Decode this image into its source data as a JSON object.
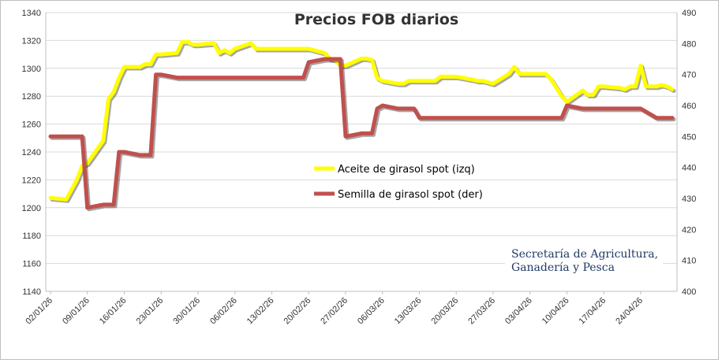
{
  "chart_data": {
    "type": "line",
    "title": "Precios FOB diarios",
    "watermark": [
      "Secretaría de Agricultura,",
      "Ganadería y Pesca"
    ],
    "x_tick_labels": [
      "02/01/26",
      "09/01/26",
      "16/01/26",
      "23/01/26",
      "30/01/26",
      "06/02/26",
      "13/02/26",
      "20/02/26",
      "27/02/26",
      "06/03/26",
      "13/03/26",
      "20/03/26",
      "27/03/26",
      "03/04/26",
      "10/04/26",
      "17/04/26",
      "24/04/26"
    ],
    "y_left": {
      "min": 1140,
      "max": 1340,
      "step": 20
    },
    "y_right": {
      "min": 400,
      "max": 490,
      "step": 10
    },
    "grid": true,
    "legend_position": "center",
    "series": [
      {
        "name": "Aceite de girasol spot (izq)",
        "axis": "left",
        "color": "#ffff00",
        "points": [
          [
            "2026-01-02",
            1207
          ],
          [
            "2026-01-05",
            1206
          ],
          [
            "2026-01-07",
            1220
          ],
          [
            "2026-01-08",
            1230
          ],
          [
            "2026-01-09",
            1232
          ],
          [
            "2026-01-12",
            1248
          ],
          [
            "2026-01-13",
            1278
          ],
          [
            "2026-01-14",
            1283
          ],
          [
            "2026-01-15",
            1293
          ],
          [
            "2026-01-16",
            1301
          ],
          [
            "2026-01-19",
            1301
          ],
          [
            "2026-01-20",
            1303
          ],
          [
            "2026-01-21",
            1303
          ],
          [
            "2026-01-22",
            1310
          ],
          [
            "2026-01-23",
            1310
          ],
          [
            "2026-01-26",
            1311
          ],
          [
            "2026-01-27",
            1319
          ],
          [
            "2026-01-28",
            1319
          ],
          [
            "2026-01-29",
            1317
          ],
          [
            "2026-01-30",
            1317
          ],
          [
            "2026-02-02",
            1318
          ],
          [
            "2026-02-03",
            1311
          ],
          [
            "2026-02-04",
            1313
          ],
          [
            "2026-02-05",
            1311
          ],
          [
            "2026-02-06",
            1314
          ],
          [
            "2026-02-09",
            1318
          ],
          [
            "2026-02-10",
            1314
          ],
          [
            "2026-02-11",
            1314
          ],
          [
            "2026-02-12",
            1314
          ],
          [
            "2026-02-13",
            1314
          ],
          [
            "2026-02-16",
            1314
          ],
          [
            "2026-02-17",
            1314
          ],
          [
            "2026-02-18",
            1314
          ],
          [
            "2026-02-19",
            1314
          ],
          [
            "2026-02-20",
            1314
          ],
          [
            "2026-02-23",
            1311
          ],
          [
            "2026-02-24",
            1307
          ],
          [
            "2026-02-25",
            1306
          ],
          [
            "2026-02-26",
            1302
          ],
          [
            "2026-02-27",
            1302
          ],
          [
            "2026-03-02",
            1307
          ],
          [
            "2026-03-03",
            1307
          ],
          [
            "2026-03-04",
            1306
          ],
          [
            "2026-03-05",
            1293
          ],
          [
            "2026-03-06",
            1291
          ],
          [
            "2026-03-09",
            1289
          ],
          [
            "2026-03-10",
            1289
          ],
          [
            "2026-03-11",
            1291
          ],
          [
            "2026-03-12",
            1291
          ],
          [
            "2026-03-13",
            1291
          ],
          [
            "2026-03-16",
            1291
          ],
          [
            "2026-03-17",
            1294
          ],
          [
            "2026-03-18",
            1294
          ],
          [
            "2026-03-19",
            1294
          ],
          [
            "2026-03-20",
            1294
          ],
          [
            "2026-03-23",
            1292
          ],
          [
            "2026-03-24",
            1291
          ],
          [
            "2026-03-25",
            1291
          ],
          [
            "2026-03-26",
            1290
          ],
          [
            "2026-03-27",
            1289
          ],
          [
            "2026-03-30",
            1296
          ],
          [
            "2026-03-31",
            1301
          ],
          [
            "2026-04-01",
            1296
          ],
          [
            "2026-04-02",
            1296
          ],
          [
            "2026-04-03",
            1296
          ],
          [
            "2026-04-06",
            1296
          ],
          [
            "2026-04-07",
            1292
          ],
          [
            "2026-04-08",
            1286
          ],
          [
            "2026-04-09",
            1280
          ],
          [
            "2026-04-10",
            1276
          ],
          [
            "2026-04-13",
            1284
          ],
          [
            "2026-04-14",
            1281
          ],
          [
            "2026-04-15",
            1281
          ],
          [
            "2026-04-16",
            1287
          ],
          [
            "2026-04-17",
            1287
          ],
          [
            "2026-04-20",
            1286
          ],
          [
            "2026-04-21",
            1285
          ],
          [
            "2026-04-22",
            1287
          ],
          [
            "2026-04-23",
            1287
          ],
          [
            "2026-04-24",
            1302
          ],
          [
            "2026-04-25",
            1287
          ],
          [
            "2026-04-27",
            1287
          ],
          [
            "2026-04-28",
            1288
          ],
          [
            "2026-04-29",
            1287
          ],
          [
            "2026-04-30",
            1285
          ]
        ]
      },
      {
        "name": "Semilla de girasol spot (der)",
        "axis": "right",
        "color": "#c0504d",
        "points": [
          [
            "2026-01-02",
            450
          ],
          [
            "2026-01-05",
            450
          ],
          [
            "2026-01-06",
            450
          ],
          [
            "2026-01-07",
            450
          ],
          [
            "2026-01-08",
            450
          ],
          [
            "2026-01-09",
            427
          ],
          [
            "2026-01-12",
            428
          ],
          [
            "2026-01-13",
            428
          ],
          [
            "2026-01-14",
            428
          ],
          [
            "2026-01-15",
            445
          ],
          [
            "2026-01-16",
            445
          ],
          [
            "2026-01-19",
            444
          ],
          [
            "2026-01-20",
            444
          ],
          [
            "2026-01-21",
            444
          ],
          [
            "2026-01-22",
            470
          ],
          [
            "2026-01-23",
            470
          ],
          [
            "2026-01-26",
            469
          ],
          [
            "2026-01-27",
            469
          ],
          [
            "2026-01-28",
            469
          ],
          [
            "2026-01-29",
            469
          ],
          [
            "2026-01-30",
            469
          ],
          [
            "2026-02-02",
            469
          ],
          [
            "2026-02-06",
            469
          ],
          [
            "2026-02-10",
            469
          ],
          [
            "2026-02-13",
            469
          ],
          [
            "2026-02-17",
            469
          ],
          [
            "2026-02-19",
            469
          ],
          [
            "2026-02-20",
            474
          ],
          [
            "2026-02-23",
            475
          ],
          [
            "2026-02-24",
            475
          ],
          [
            "2026-02-25",
            475
          ],
          [
            "2026-02-26",
            475
          ],
          [
            "2026-02-27",
            450
          ],
          [
            "2026-03-02",
            451
          ],
          [
            "2026-03-03",
            451
          ],
          [
            "2026-03-04",
            451
          ],
          [
            "2026-03-05",
            459
          ],
          [
            "2026-03-06",
            460
          ],
          [
            "2026-03-09",
            459
          ],
          [
            "2026-03-10",
            459
          ],
          [
            "2026-03-11",
            459
          ],
          [
            "2026-03-12",
            459
          ],
          [
            "2026-03-13",
            456
          ],
          [
            "2026-03-16",
            456
          ],
          [
            "2026-03-17",
            456
          ],
          [
            "2026-03-20",
            456
          ],
          [
            "2026-03-25",
            456
          ],
          [
            "2026-03-30",
            456
          ],
          [
            "2026-04-03",
            456
          ],
          [
            "2026-04-08",
            456
          ],
          [
            "2026-04-09",
            456
          ],
          [
            "2026-04-10",
            460
          ],
          [
            "2026-04-13",
            459
          ],
          [
            "2026-04-16",
            459
          ],
          [
            "2026-04-20",
            459
          ],
          [
            "2026-04-23",
            459
          ],
          [
            "2026-04-24",
            459
          ],
          [
            "2026-04-27",
            456
          ],
          [
            "2026-04-28",
            456
          ],
          [
            "2026-04-29",
            456
          ],
          [
            "2026-04-30",
            456
          ]
        ]
      }
    ]
  }
}
